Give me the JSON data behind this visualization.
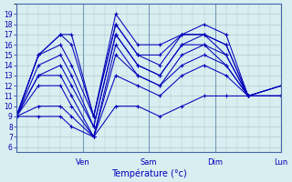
{
  "xlabel": "Température (°c)",
  "ylabel": "",
  "yticks": [
    6,
    7,
    8,
    9,
    10,
    11,
    12,
    13,
    14,
    15,
    16,
    17,
    18,
    19
  ],
  "ylim": [
    5.5,
    20
  ],
  "xlim": [
    0,
    96
  ],
  "day_ticks": [
    24,
    48,
    72,
    96
  ],
  "day_labels": [
    "Ven",
    "Sam",
    "Dim",
    "Lun"
  ],
  "bg_color": "#d8eef0",
  "grid_color": "#b0ccd0",
  "line_color": "#0000bb",
  "marker": "+",
  "markersize": 3,
  "linewidth": 0.75,
  "series": [
    [
      9,
      15,
      17,
      17,
      9,
      19,
      16,
      16,
      17,
      18,
      17,
      11,
      12
    ],
    [
      9,
      15,
      17,
      16,
      9,
      18,
      15,
      15,
      17,
      17,
      16,
      11,
      12
    ],
    [
      9,
      15,
      16,
      14,
      9,
      18,
      15,
      14,
      17,
      17,
      16,
      11,
      12
    ],
    [
      9,
      14,
      15,
      13,
      8,
      17,
      14,
      13,
      16,
      17,
      15,
      11,
      11
    ],
    [
      9,
      13,
      14,
      12,
      8,
      17,
      14,
      13,
      16,
      16,
      15,
      11,
      11
    ],
    [
      9,
      13,
      13,
      11,
      7,
      16,
      13,
      12,
      15,
      16,
      14,
      11,
      11
    ],
    [
      9,
      12,
      12,
      10,
      7,
      15,
      13,
      12,
      14,
      15,
      14,
      11,
      11
    ],
    [
      9,
      10,
      10,
      9,
      7,
      13,
      12,
      11,
      13,
      14,
      13,
      11,
      11
    ],
    [
      9,
      9,
      9,
      8,
      7,
      10,
      10,
      9,
      10,
      11,
      11,
      11,
      11
    ]
  ],
  "x_positions": [
    0,
    8,
    16,
    20,
    28,
    36,
    44,
    52,
    60,
    68,
    76,
    84,
    96
  ]
}
